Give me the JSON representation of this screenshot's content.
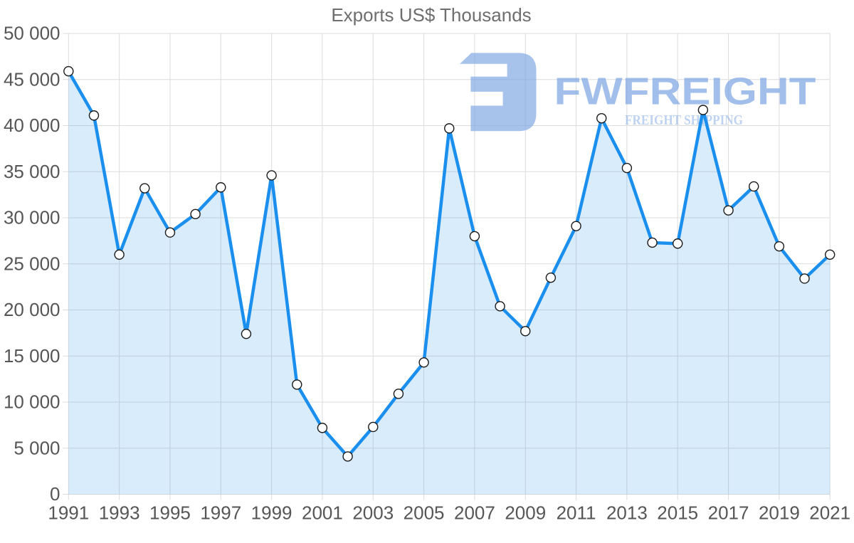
{
  "page": {
    "background": "#ffffff"
  },
  "title": "Exports US$ Thousands",
  "watermark": {
    "brand_text": "FWFREIGHT",
    "tagline_text": "FREIGHT SHIPPING",
    "logo_icon": "fwfreight-logo-mark",
    "color": "#7ea6e3"
  },
  "chart_data": {
    "type": "area",
    "title": "Exports US$ Thousands",
    "categories": [
      1991,
      1992,
      1993,
      1994,
      1995,
      1996,
      1997,
      1998,
      1999,
      2000,
      2001,
      2002,
      2003,
      2004,
      2005,
      2006,
      2007,
      2008,
      2009,
      2010,
      2011,
      2012,
      2013,
      2014,
      2015,
      2016,
      2017,
      2018,
      2019,
      2020,
      2021
    ],
    "series": [
      {
        "name": "Exports US$ Thousands",
        "values": [
          45900,
          41100,
          26000,
          33200,
          28400,
          30400,
          33300,
          17400,
          34600,
          11900,
          7200,
          4100,
          7300,
          10900,
          14300,
          39700,
          28000,
          20400,
          17700,
          23500,
          29100,
          40800,
          35400,
          27300,
          27200,
          41700,
          30800,
          33400,
          26900,
          23400,
          26000
        ]
      }
    ],
    "xlabel": "",
    "ylabel": "",
    "ylim": [
      0,
      50000
    ],
    "y_ticks": [
      0,
      5000,
      10000,
      15000,
      20000,
      25000,
      30000,
      35000,
      40000,
      45000,
      50000
    ],
    "y_tick_labels": [
      "0",
      "5 000",
      "10 000",
      "15 000",
      "20 000",
      "25 000",
      "30 000",
      "35 000",
      "40 000",
      "45 000",
      "50 000"
    ],
    "x_ticks": [
      1991,
      1993,
      1995,
      1997,
      1999,
      2001,
      2003,
      2005,
      2007,
      2009,
      2011,
      2013,
      2015,
      2017,
      2019,
      2021
    ],
    "x_tick_labels": [
      "1991",
      "1993",
      "1995",
      "1997",
      "1999",
      "2001",
      "2003",
      "2005",
      "2007",
      "2009",
      "2011",
      "2013",
      "2015",
      "2017",
      "2019",
      "2021"
    ],
    "grid": true,
    "legend": "none",
    "marker": "circle-white",
    "colors": {
      "line": "#1b8fee",
      "fill_opacity": 0.17,
      "grid": "#dcdcdc",
      "axis_label": "#565656",
      "title": "#6e6e6e",
      "marker_fill": "#ffffff",
      "marker_stroke": "#1a1a1a"
    }
  }
}
